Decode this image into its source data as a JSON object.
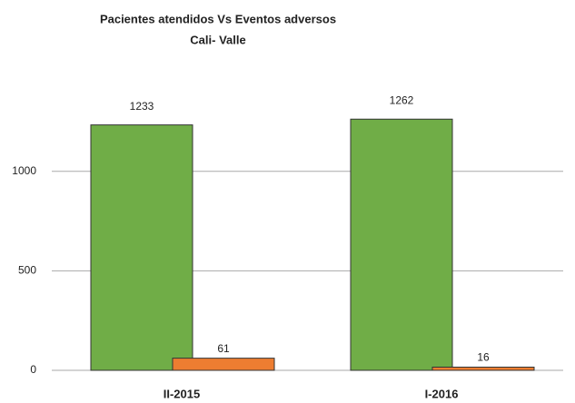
{
  "chart_data": {
    "type": "bar",
    "title": "Pacientes atendidos Vs Eventos adversos",
    "subtitle": "Cali- Valle",
    "categories": [
      "II-2015",
      "I-2016"
    ],
    "series": [
      {
        "color": "#70ad47",
        "values": [
          1233,
          1262
        ]
      },
      {
        "color": "#ed7d31",
        "values": [
          61,
          16
        ]
      }
    ],
    "ylim": [
      0,
      1400
    ],
    "yticks": [
      0,
      500,
      1000
    ],
    "grid": true
  }
}
